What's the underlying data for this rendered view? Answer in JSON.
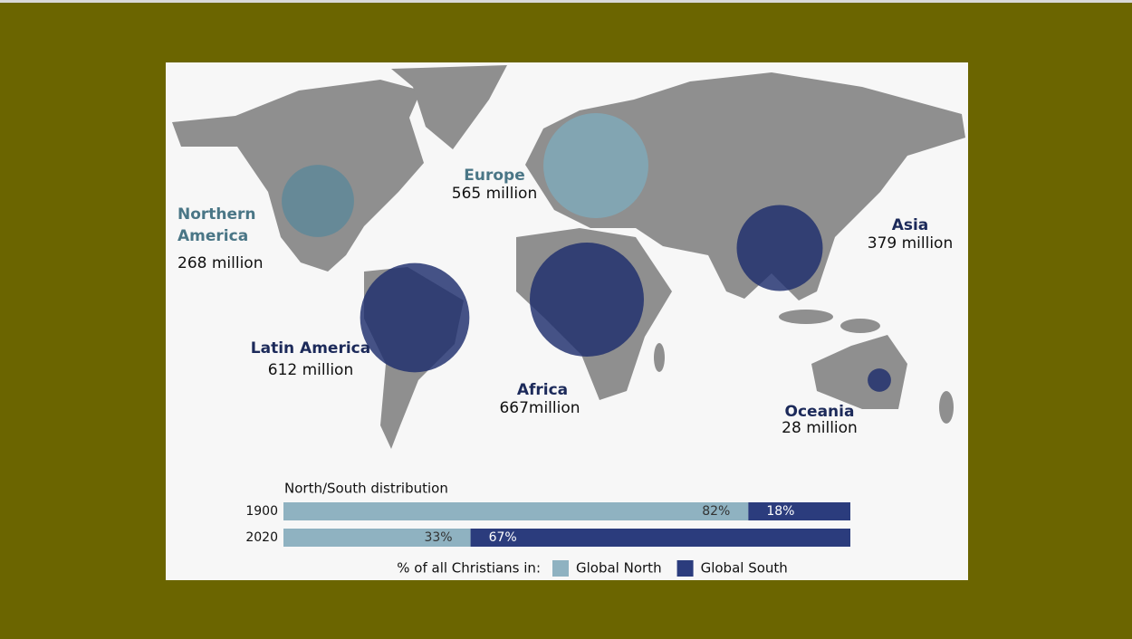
{
  "chart_data": [
    {
      "type": "bubble",
      "categories": [
        "Northern America",
        "Europe",
        "Latin America",
        "Africa",
        "Asia",
        "Oceania"
      ],
      "values": [
        268,
        565,
        612,
        667,
        379,
        28
      ],
      "value_labels": [
        "268 million",
        "565 million",
        "612 million",
        "667million",
        "379 million",
        "28 million"
      ],
      "colors": [
        "#5d8898",
        "#7fa9ba",
        "#1d2d6d",
        "#1d2d6d",
        "#1d2d6d",
        "#1d2d6d"
      ],
      "label_colors": [
        "#4a7686",
        "#4a7686",
        "#1c2a5a",
        "#1c2a5a",
        "#1c2a5a",
        "#1c2a5a"
      ]
    },
    {
      "type": "bar",
      "title": "North/South distribution",
      "categories": [
        "1900",
        "2020"
      ],
      "series": [
        {
          "name": "Global North",
          "color": "#8fb2c1",
          "values": [
            82,
            33
          ],
          "value_labels": [
            "82%",
            "33%"
          ]
        },
        {
          "name": "Global South",
          "color": "#2b3c7d",
          "values": [
            18,
            67
          ],
          "value_labels": [
            "18%",
            "67%"
          ]
        }
      ],
      "xlim": [
        0,
        100
      ],
      "legend_title": "% of all Christians in:"
    }
  ]
}
